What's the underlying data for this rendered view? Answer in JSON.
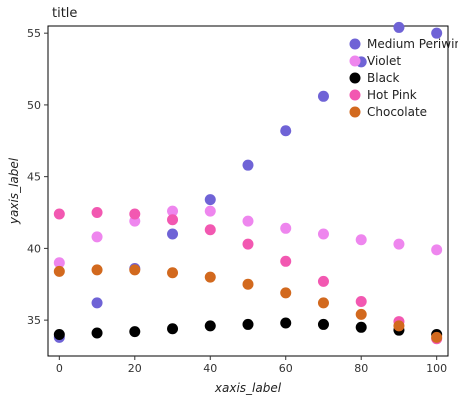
{
  "chart_data": {
    "type": "scatter",
    "title": "title",
    "xlabel": "xaxis_label",
    "ylabel": "yaxis_label",
    "xlim": [
      -3,
      103
    ],
    "ylim": [
      32.5,
      55.5
    ],
    "x_ticks": [
      0,
      20,
      40,
      60,
      80,
      100
    ],
    "y_ticks": [
      35,
      40,
      45,
      50,
      55
    ],
    "grid": false,
    "legend_position": "top-right",
    "x": [
      0,
      10,
      20,
      30,
      40,
      50,
      60,
      70,
      80,
      90,
      100
    ],
    "series": [
      {
        "name": "Medium Periwinkle",
        "color": "#6f63d6",
        "values": [
          33.8,
          36.2,
          38.6,
          41.0,
          43.4,
          45.8,
          48.2,
          50.6,
          53.0,
          55.4,
          55.0
        ]
      },
      {
        "name": "Violet",
        "color": "#ee86ee",
        "values": [
          39.0,
          40.8,
          41.9,
          42.6,
          42.6,
          41.9,
          41.4,
          41.0,
          40.6,
          40.3,
          39.9
        ]
      },
      {
        "name": "Black",
        "color": "#000000",
        "values": [
          34.0,
          34.1,
          34.2,
          34.4,
          34.6,
          34.7,
          34.8,
          34.7,
          34.5,
          34.3,
          34.0
        ]
      },
      {
        "name": "Hot Pink",
        "color": "#f258b1",
        "values": [
          42.4,
          42.5,
          42.4,
          42.0,
          41.3,
          40.3,
          39.1,
          37.7,
          36.3,
          34.9,
          33.7
        ]
      },
      {
        "name": "Chocolate",
        "color": "#d2691e",
        "values": [
          38.4,
          38.5,
          38.5,
          38.3,
          38.0,
          37.5,
          36.9,
          36.2,
          35.4,
          34.6,
          33.8
        ]
      }
    ]
  }
}
